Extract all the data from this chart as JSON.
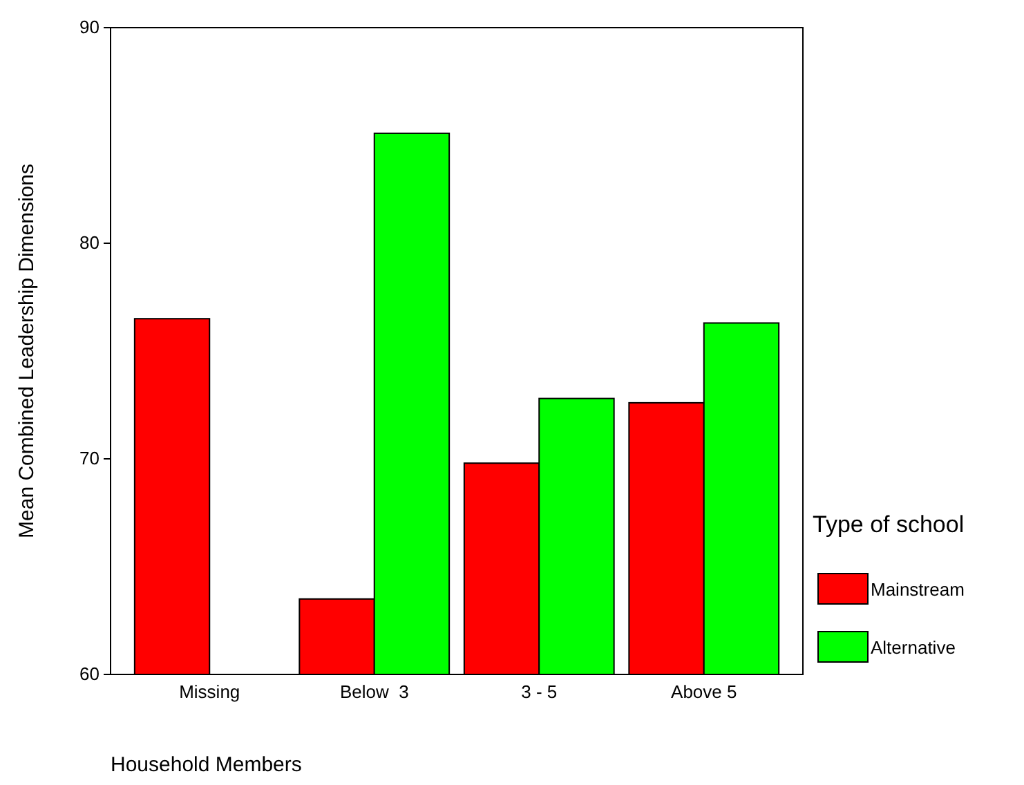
{
  "chart_data": {
    "type": "bar",
    "xlabel": "Household Members",
    "ylabel": "Mean Combined Leadership Dimensions",
    "legend_title": "Type of school",
    "legend": "right",
    "categories": [
      "Missing",
      "Below  3",
      "3 - 5",
      "Above 5"
    ],
    "series": [
      {
        "name": "Mainstream",
        "color": "#ff0000",
        "values": [
          76.5,
          63.5,
          69.8,
          72.6
        ]
      },
      {
        "name": "Alternative",
        "color": "#00ff00",
        "values": [
          null,
          85.1,
          72.8,
          76.3
        ]
      }
    ],
    "ylim": [
      60,
      90
    ],
    "yticks": [
      60,
      70,
      80,
      90
    ]
  }
}
